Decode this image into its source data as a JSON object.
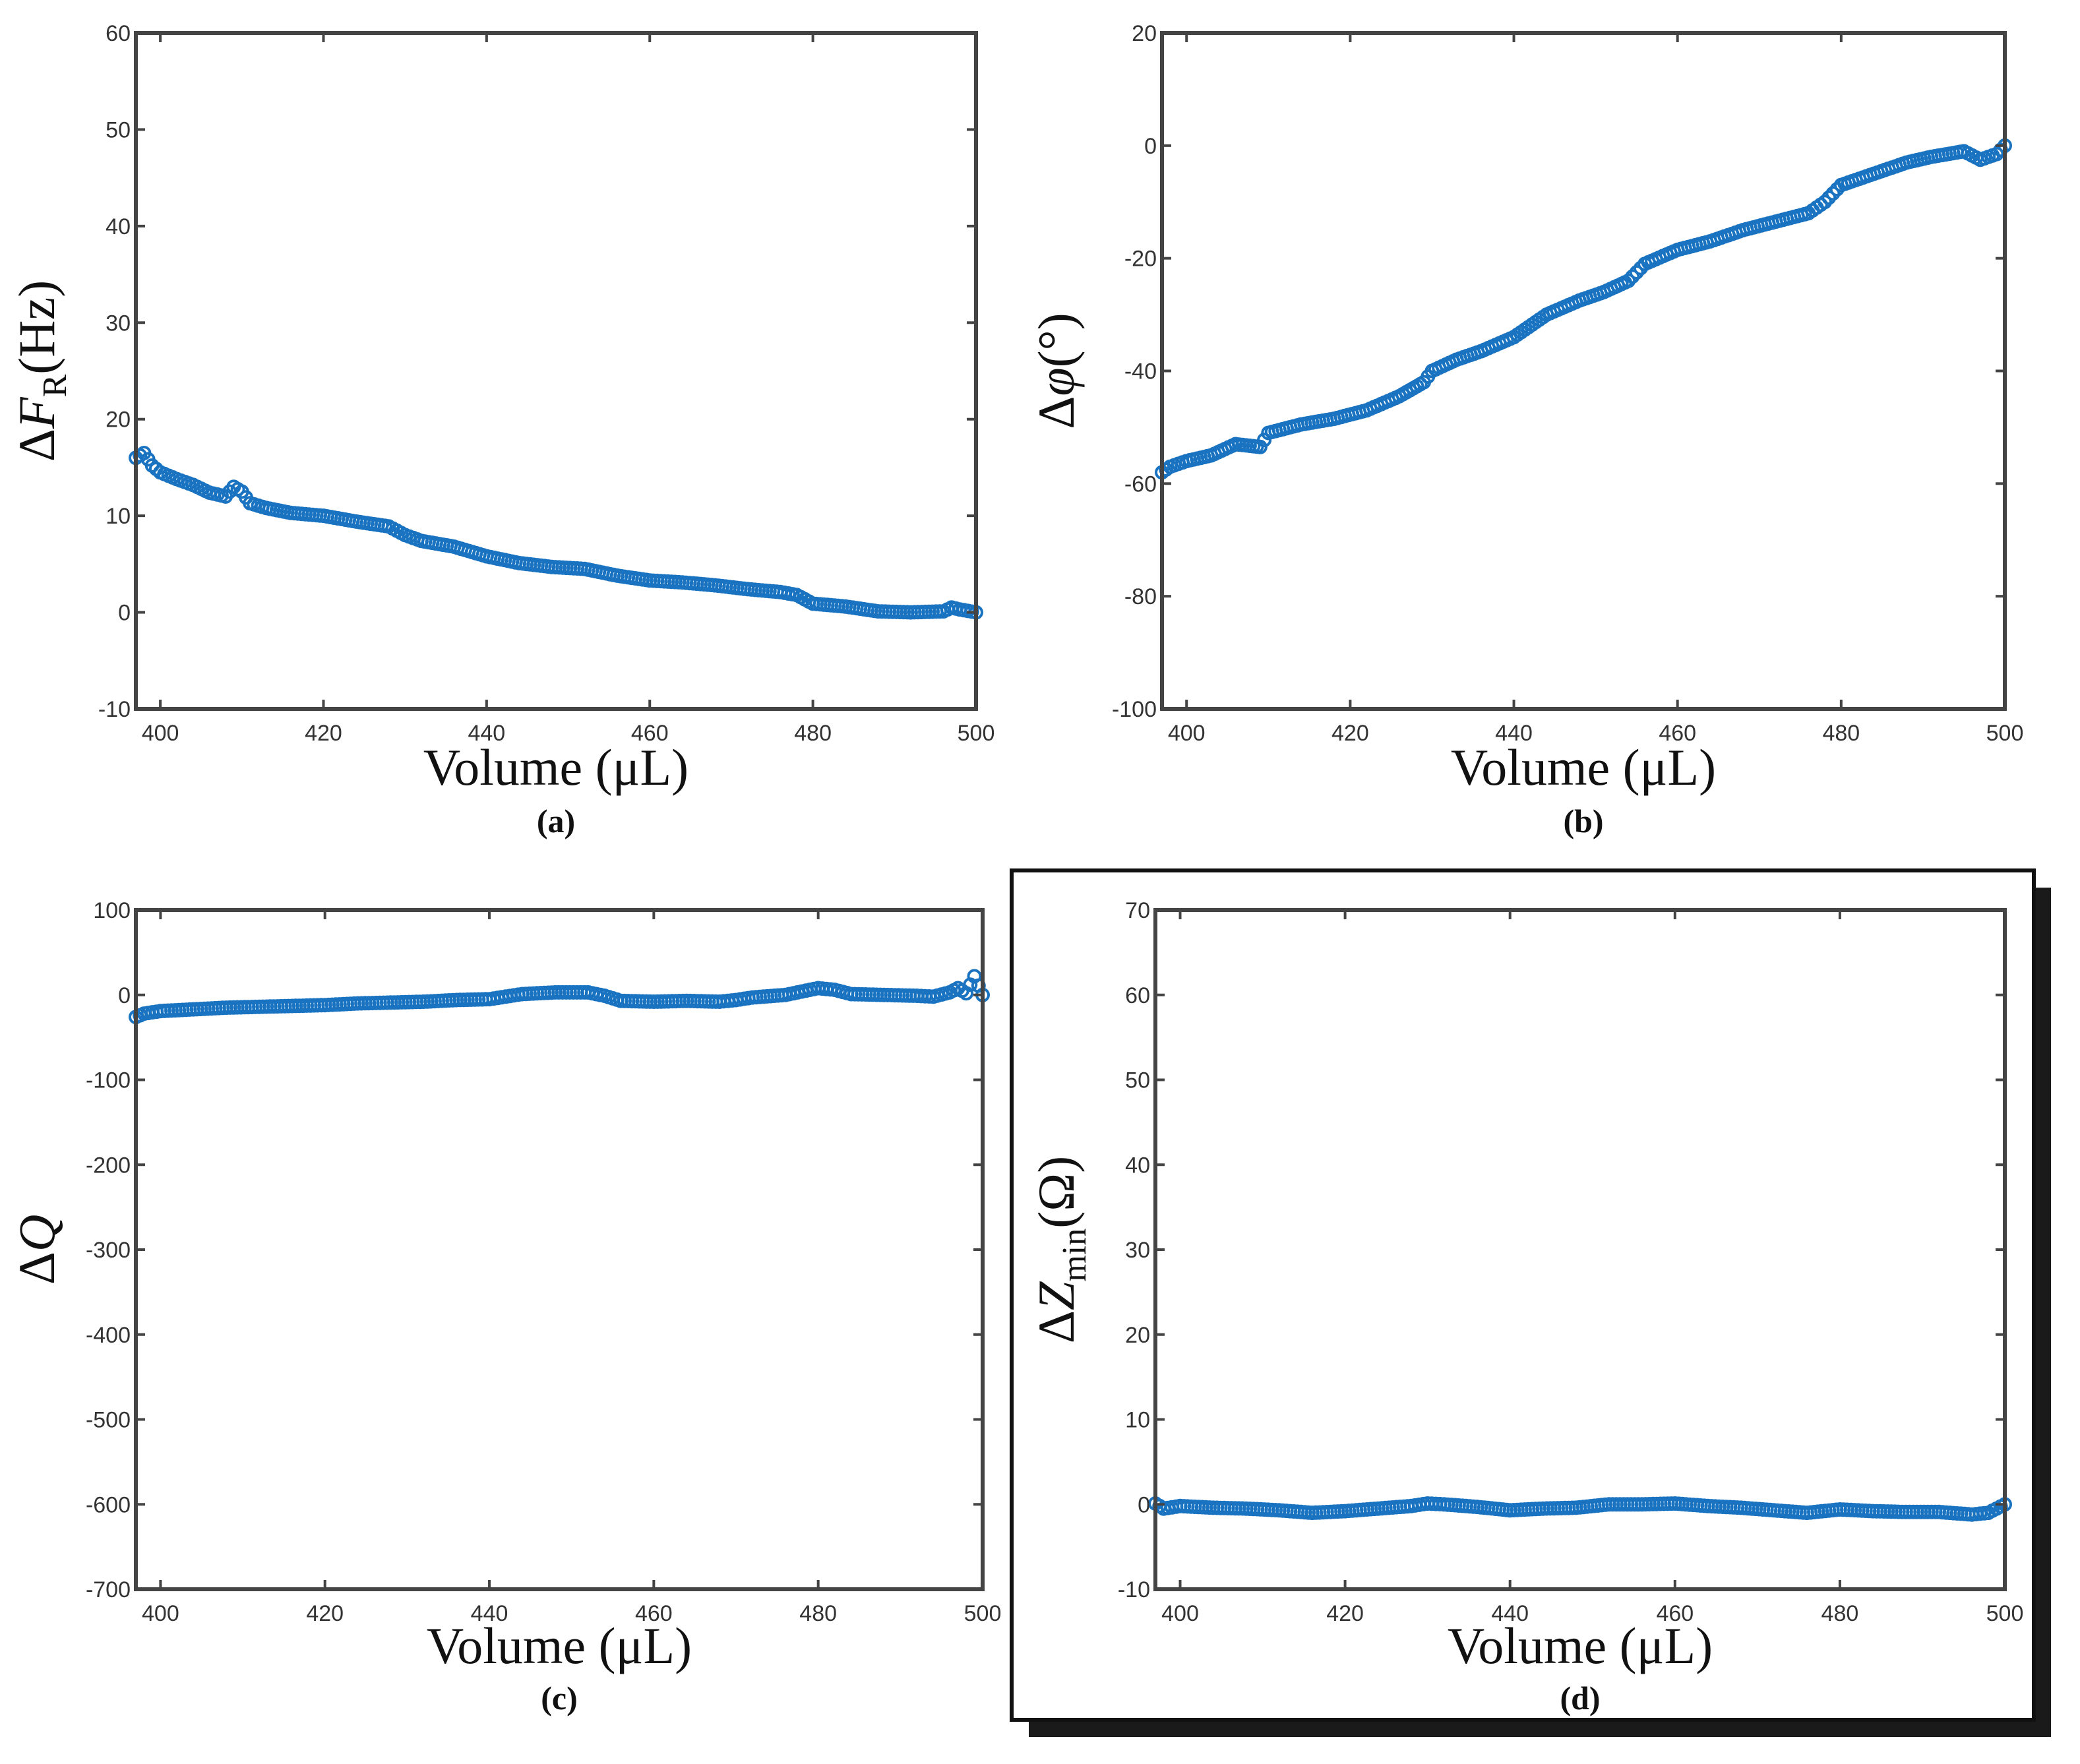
{
  "figure": {
    "panel_captions": [
      "(a)",
      "(b)",
      "(c)",
      "(d)"
    ],
    "colors": {
      "marker": "#1a73c0",
      "axes": "#444444",
      "text": "#333333",
      "shadow": "#1a1a1a"
    }
  },
  "chart_data": [
    {
      "type": "scatter",
      "caption": "(a)",
      "xlabel": "Volume (μL)",
      "ylabel": {
        "delta": "Δ",
        "symbol": "F",
        "sub": "R",
        "unit": "(Hz)"
      },
      "xlim": [
        397,
        500
      ],
      "ylim": [
        -10,
        60
      ],
      "xticks": [
        400,
        420,
        440,
        460,
        480,
        500
      ],
      "yticks": [
        -10,
        0,
        10,
        20,
        30,
        40,
        50,
        60
      ],
      "series": [
        {
          "name": "ΔF_R",
          "points": [
            [
              397,
              16
            ],
            [
              398,
              16.5
            ],
            [
              399,
              15.2
            ],
            [
              400,
              14.5
            ],
            [
              402,
              13.8
            ],
            [
              404,
              13.2
            ],
            [
              406,
              12.4
            ],
            [
              408,
              12.0
            ],
            [
              409,
              13.0
            ],
            [
              410,
              12.5
            ],
            [
              411,
              11.3
            ],
            [
              413,
              10.8
            ],
            [
              416,
              10.3
            ],
            [
              420,
              10.0
            ],
            [
              424,
              9.4
            ],
            [
              428,
              8.9
            ],
            [
              430,
              8.0
            ],
            [
              432,
              7.4
            ],
            [
              436,
              6.8
            ],
            [
              440,
              5.8
            ],
            [
              444,
              5.1
            ],
            [
              448,
              4.7
            ],
            [
              452,
              4.5
            ],
            [
              456,
              3.8
            ],
            [
              460,
              3.3
            ],
            [
              464,
              3.1
            ],
            [
              468,
              2.8
            ],
            [
              472,
              2.4
            ],
            [
              476,
              2.1
            ],
            [
              478,
              1.8
            ],
            [
              480,
              0.9
            ],
            [
              484,
              0.6
            ],
            [
              488,
              0.1
            ],
            [
              492,
              0.0
            ],
            [
              496,
              0.1
            ],
            [
              497,
              0.5
            ],
            [
              498,
              0.3
            ],
            [
              500,
              0.0
            ]
          ]
        }
      ]
    },
    {
      "type": "scatter",
      "caption": "(b)",
      "xlabel": "Volume (μL)",
      "ylabel": {
        "delta": "Δ",
        "symbol": "φ",
        "sub": "",
        "unit": "(°)"
      },
      "xlim": [
        397,
        500
      ],
      "ylim": [
        -100,
        20
      ],
      "xticks": [
        400,
        420,
        440,
        460,
        480,
        500
      ],
      "yticks": [
        -100,
        -80,
        -60,
        -40,
        -20,
        0,
        20
      ],
      "series": [
        {
          "name": "Δφ",
          "points": [
            [
              397,
              -58
            ],
            [
              398,
              -57
            ],
            [
              400,
              -56
            ],
            [
              403,
              -55
            ],
            [
              406,
              -53
            ],
            [
              409,
              -53.5
            ],
            [
              410,
              -51
            ],
            [
              414,
              -49.5
            ],
            [
              418,
              -48.5
            ],
            [
              422,
              -47
            ],
            [
              426,
              -44.5
            ],
            [
              429,
              -42
            ],
            [
              430,
              -40
            ],
            [
              433,
              -38
            ],
            [
              436,
              -36.5
            ],
            [
              440,
              -34
            ],
            [
              444,
              -30
            ],
            [
              448,
              -27.5
            ],
            [
              451,
              -26
            ],
            [
              454,
              -24
            ],
            [
              456,
              -21
            ],
            [
              460,
              -18.5
            ],
            [
              464,
              -17
            ],
            [
              468,
              -15
            ],
            [
              472,
              -13.5
            ],
            [
              476,
              -12
            ],
            [
              478,
              -10
            ],
            [
              480,
              -7
            ],
            [
              484,
              -5
            ],
            [
              488,
              -3
            ],
            [
              491,
              -2
            ],
            [
              495,
              -1
            ],
            [
              497,
              -2.5
            ],
            [
              499,
              -1.5
            ],
            [
              500,
              0
            ]
          ]
        }
      ]
    },
    {
      "type": "scatter",
      "caption": "(c)",
      "xlabel": "Volume (μL)",
      "ylabel": {
        "delta": "Δ",
        "symbol": "Q",
        "sub": "",
        "unit": ""
      },
      "xlim": [
        397,
        500
      ],
      "ylim": [
        -700,
        100
      ],
      "xticks": [
        400,
        420,
        440,
        460,
        480,
        500
      ],
      "yticks": [
        -700,
        -600,
        -500,
        -400,
        -300,
        -200,
        -100,
        0,
        100
      ],
      "series": [
        {
          "name": "ΔQ",
          "points": [
            [
              397,
              -26
            ],
            [
              398,
              -22
            ],
            [
              400,
              -19
            ],
            [
              404,
              -17
            ],
            [
              408,
              -15
            ],
            [
              412,
              -14
            ],
            [
              416,
              -13
            ],
            [
              420,
              -12
            ],
            [
              424,
              -10
            ],
            [
              428,
              -9
            ],
            [
              432,
              -8
            ],
            [
              436,
              -6
            ],
            [
              440,
              -5
            ],
            [
              442,
              -2
            ],
            [
              444,
              1
            ],
            [
              448,
              3
            ],
            [
              452,
              3
            ],
            [
              454,
              -1
            ],
            [
              456,
              -7
            ],
            [
              460,
              -8
            ],
            [
              464,
              -7
            ],
            [
              468,
              -8
            ],
            [
              470,
              -6
            ],
            [
              472,
              -3
            ],
            [
              476,
              0
            ],
            [
              478,
              4
            ],
            [
              480,
              8
            ],
            [
              482,
              6
            ],
            [
              484,
              1
            ],
            [
              488,
              0
            ],
            [
              492,
              -1
            ],
            [
              494,
              -2
            ],
            [
              496,
              3
            ],
            [
              497,
              8
            ],
            [
              498,
              2
            ],
            [
              499,
              22
            ],
            [
              500,
              0
            ]
          ]
        }
      ]
    },
    {
      "type": "scatter",
      "caption": "(d)",
      "xlabel": "Volume (μL)",
      "ylabel": {
        "delta": "Δ",
        "symbol": "Z",
        "sub": "min",
        "unit": "(Ω)"
      },
      "xlim": [
        397,
        500
      ],
      "ylim": [
        -10,
        70
      ],
      "xticks": [
        400,
        420,
        440,
        460,
        480,
        500
      ],
      "yticks": [
        -10,
        0,
        10,
        20,
        30,
        40,
        50,
        60,
        70
      ],
      "series": [
        {
          "name": "ΔZ_min",
          "points": [
            [
              397,
              0.1
            ],
            [
              398,
              -0.5
            ],
            [
              400,
              -0.2
            ],
            [
              404,
              -0.4
            ],
            [
              408,
              -0.5
            ],
            [
              412,
              -0.7
            ],
            [
              416,
              -1.0
            ],
            [
              420,
              -0.8
            ],
            [
              424,
              -0.5
            ],
            [
              428,
              -0.2
            ],
            [
              430,
              0.1
            ],
            [
              432,
              0.0
            ],
            [
              436,
              -0.3
            ],
            [
              440,
              -0.7
            ],
            [
              444,
              -0.5
            ],
            [
              448,
              -0.4
            ],
            [
              452,
              0.0
            ],
            [
              456,
              0.0
            ],
            [
              460,
              0.1
            ],
            [
              464,
              -0.2
            ],
            [
              468,
              -0.4
            ],
            [
              472,
              -0.7
            ],
            [
              476,
              -1.0
            ],
            [
              480,
              -0.6
            ],
            [
              484,
              -0.8
            ],
            [
              488,
              -0.9
            ],
            [
              492,
              -0.9
            ],
            [
              496,
              -1.2
            ],
            [
              498,
              -1.0
            ],
            [
              499,
              -0.5
            ],
            [
              500,
              0.0
            ]
          ]
        }
      ]
    }
  ]
}
